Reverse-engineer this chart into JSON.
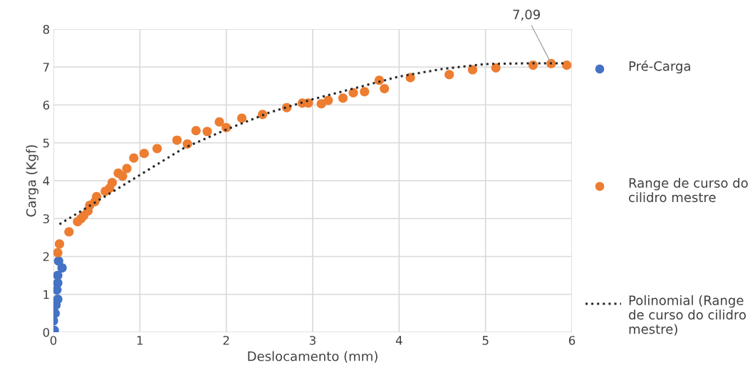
{
  "chart_data": {
    "type": "scatter",
    "xlabel": "Deslocamento (mm)",
    "ylabel": "Carga (Kgf)",
    "xlim": [
      0,
      6
    ],
    "ylim": [
      0,
      8
    ],
    "xticks": [
      0,
      1,
      2,
      3,
      4,
      5,
      6
    ],
    "yticks": [
      0,
      1,
      2,
      3,
      4,
      5,
      6,
      7,
      8
    ],
    "grid": true,
    "legend": "right",
    "marker": "circle",
    "annotations": [
      {
        "text": "7,09",
        "x": 5.76,
        "y": 7.09
      }
    ],
    "series": [
      {
        "name": "Pré-Carga",
        "color": "#4472c4",
        "x": [
          0.01,
          0.0,
          0.02,
          0.03,
          0.05,
          0.04,
          0.05,
          0.05,
          0.1,
          0.06
        ],
        "values": [
          0.05,
          0.3,
          0.5,
          0.72,
          0.87,
          1.12,
          1.3,
          1.5,
          1.7,
          1.88
        ]
      },
      {
        "name": "Range de curso do cilidro mestre",
        "color": "#ed7d31",
        "x": [
          0.05,
          0.07,
          0.18,
          0.28,
          0.32,
          0.35,
          0.4,
          0.42,
          0.48,
          0.5,
          0.6,
          0.65,
          0.68,
          0.75,
          0.8,
          0.85,
          0.92,
          0.93,
          1.05,
          1.2,
          1.43,
          1.55,
          1.65,
          1.75,
          1.78,
          1.92,
          2.0,
          2.18,
          2.42,
          2.7,
          2.88,
          2.95,
          3.1,
          3.18,
          3.35,
          3.47,
          3.6,
          3.77,
          3.83,
          4.13,
          4.58,
          4.85,
          5.12,
          5.55,
          5.76,
          5.94
        ],
        "values": [
          2.1,
          2.33,
          2.65,
          2.92,
          3.0,
          3.08,
          3.2,
          3.35,
          3.45,
          3.58,
          3.72,
          3.8,
          3.95,
          4.2,
          4.12,
          4.32,
          null,
          4.6,
          4.72,
          4.85,
          5.07,
          4.97,
          5.32,
          null,
          5.3,
          5.55,
          5.4,
          5.65,
          5.75,
          5.93,
          6.05,
          6.05,
          6.03,
          6.12,
          6.18,
          6.32,
          6.35,
          6.65,
          6.43,
          6.72,
          6.8,
          6.93,
          6.98,
          7.05,
          7.09,
          7.05
        ]
      },
      {
        "name": "Polinomial (Range de curso do cilidro mestre)",
        "type": "line",
        "line_style": "dotted",
        "marker": "none",
        "color": "#262626",
        "x": [
          0.07,
          0.5,
          1,
          1.5,
          2,
          2.5,
          3,
          3.5,
          4,
          4.5,
          5,
          5.5,
          5.94
        ],
        "values": [
          2.85,
          3.45,
          4.15,
          4.85,
          5.35,
          5.8,
          6.15,
          6.45,
          6.75,
          6.95,
          7.08,
          7.1,
          7.1
        ]
      }
    ]
  }
}
